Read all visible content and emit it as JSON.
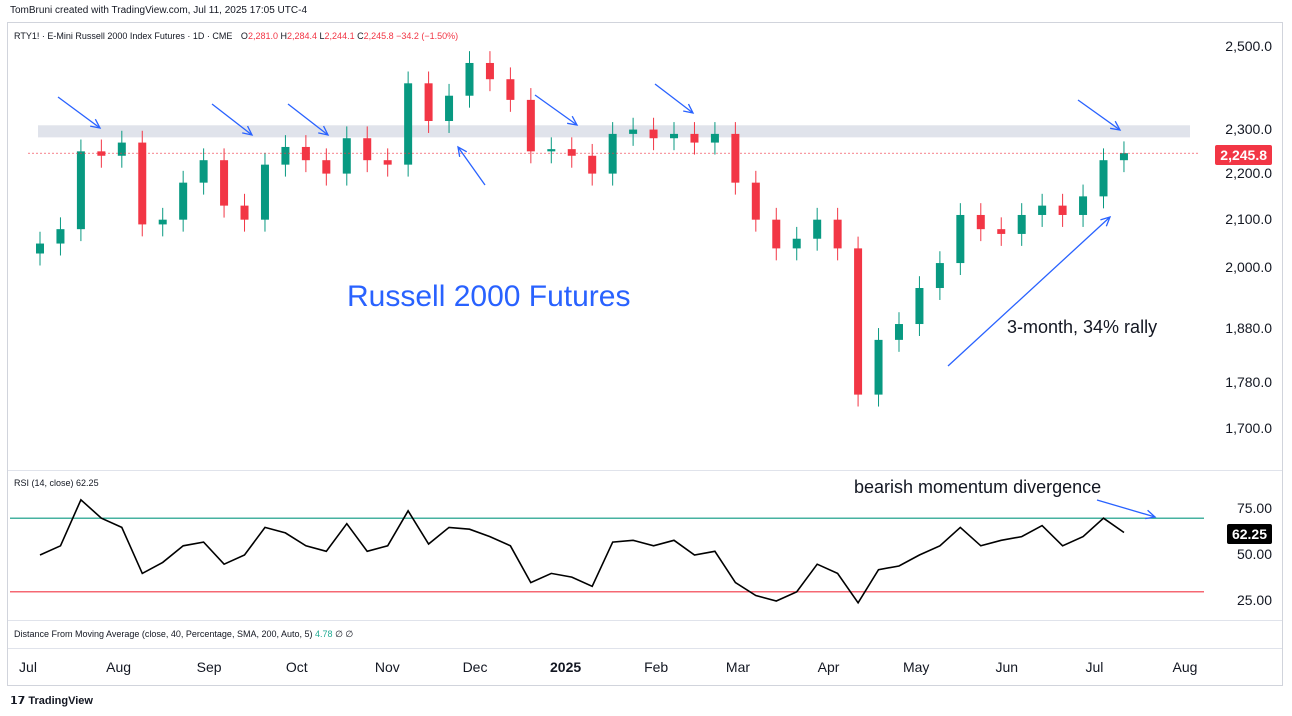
{
  "credit": "TomBruni created with TradingView.com, Jul 11, 2025 17:05 UTC-4",
  "header": {
    "symbol_desc": "RTY1! · E-Mini Russell 2000 Index Futures · 1D · CME",
    "o_label": "O",
    "o_value": "2,281.0",
    "h_label": "H",
    "h_value": "2,284.4",
    "l_label": "L",
    "l_value": "2,244.1",
    "c_label": "C",
    "c_value": "2,245.8",
    "change": "−34.2 (−1.50%)"
  },
  "rsi_header": {
    "label": "RSI (14, close)",
    "value": "62.25"
  },
  "dma_header": {
    "label": "Distance From Moving Average (close, 40, Percentage, SMA, 200, Auto, 5)",
    "value": "4.78",
    "na1": "∅",
    "na2": "∅"
  },
  "price_badge": "2,245.8",
  "rsi_badge": "62.25",
  "annotations": {
    "title": "Russell 2000 Futures",
    "rally": "3-month, 34% rally",
    "divergence": "bearish momentum divergence"
  },
  "logo_text": "TradingView",
  "colors": {
    "up": "#089981",
    "down": "#f23645",
    "arrow": "#2962ff",
    "resistance": "#e0e3eb",
    "rsi_line": "#000000",
    "rsi_upper": "#089981",
    "rsi_lower": "#f23645"
  },
  "chart_data": [
    {
      "type": "candlestick",
      "title": "RTY1! · E-Mini Russell 2000 Index Futures · 1D · CME",
      "y_ticks": [
        "2,500.0",
        "2,300.0",
        "2,200.0",
        "2,100.0",
        "2,000.0",
        "1,880.0",
        "1,780.0",
        "1,700.0"
      ],
      "y_scale": "log",
      "x_ticks": [
        "Jul",
        "Aug",
        "Sep",
        "Oct",
        "Nov",
        "Dec",
        "2025",
        "Feb",
        "Mar",
        "Apr",
        "May",
        "Jun",
        "Jul",
        "Aug"
      ],
      "resistance_zone": [
        2282,
        2310
      ],
      "last_price": 2245.8,
      "weekly_closes": [
        {
          "date": "2024-07-01",
          "close": 2050
        },
        {
          "date": "2024-07-08",
          "close": 2080
        },
        {
          "date": "2024-07-15",
          "close": 2250
        },
        {
          "date": "2024-07-22",
          "close": 2240
        },
        {
          "date": "2024-07-29",
          "close": 2270
        },
        {
          "date": "2024-08-05",
          "close": 2090
        },
        {
          "date": "2024-08-12",
          "close": 2100
        },
        {
          "date": "2024-08-19",
          "close": 2180
        },
        {
          "date": "2024-08-26",
          "close": 2230
        },
        {
          "date": "2024-09-02",
          "close": 2130
        },
        {
          "date": "2024-09-09",
          "close": 2100
        },
        {
          "date": "2024-09-16",
          "close": 2220
        },
        {
          "date": "2024-09-23",
          "close": 2260
        },
        {
          "date": "2024-09-30",
          "close": 2230
        },
        {
          "date": "2024-10-07",
          "close": 2200
        },
        {
          "date": "2024-10-14",
          "close": 2280
        },
        {
          "date": "2024-10-21",
          "close": 2230
        },
        {
          "date": "2024-10-28",
          "close": 2220
        },
        {
          "date": "2024-11-04",
          "close": 2410
        },
        {
          "date": "2024-11-11",
          "close": 2320
        },
        {
          "date": "2024-11-18",
          "close": 2380
        },
        {
          "date": "2024-11-25",
          "close": 2460
        },
        {
          "date": "2024-12-02",
          "close": 2420
        },
        {
          "date": "2024-12-09",
          "close": 2370
        },
        {
          "date": "2024-12-16",
          "close": 2250
        },
        {
          "date": "2024-12-23",
          "close": 2255
        },
        {
          "date": "2024-12-30",
          "close": 2240
        },
        {
          "date": "2025-01-06",
          "close": 2200
        },
        {
          "date": "2025-01-13",
          "close": 2290
        },
        {
          "date": "2025-01-20",
          "close": 2300
        },
        {
          "date": "2025-01-27",
          "close": 2280
        },
        {
          "date": "2025-02-03",
          "close": 2290
        },
        {
          "date": "2025-02-10",
          "close": 2270
        },
        {
          "date": "2025-02-17",
          "close": 2290
        },
        {
          "date": "2025-02-24",
          "close": 2180
        },
        {
          "date": "2025-03-03",
          "close": 2100
        },
        {
          "date": "2025-03-10",
          "close": 2040
        },
        {
          "date": "2025-03-17",
          "close": 2060
        },
        {
          "date": "2025-03-24",
          "close": 2100
        },
        {
          "date": "2025-03-31",
          "close": 2040
        },
        {
          "date": "2025-04-07",
          "close": 1760
        },
        {
          "date": "2025-04-14",
          "close": 1860
        },
        {
          "date": "2025-04-21",
          "close": 1890
        },
        {
          "date": "2025-04-28",
          "close": 1960
        },
        {
          "date": "2025-05-05",
          "close": 2010
        },
        {
          "date": "2025-05-12",
          "close": 2110
        },
        {
          "date": "2025-05-19",
          "close": 2080
        },
        {
          "date": "2025-05-26",
          "close": 2070
        },
        {
          "date": "2025-06-02",
          "close": 2110
        },
        {
          "date": "2025-06-09",
          "close": 2130
        },
        {
          "date": "2025-06-16",
          "close": 2110
        },
        {
          "date": "2025-06-23",
          "close": 2150
        },
        {
          "date": "2025-06-30",
          "close": 2230
        },
        {
          "date": "2025-07-07",
          "close": 2245.8
        }
      ]
    },
    {
      "type": "line",
      "title": "RSI (14, close)",
      "y_ticks": [
        "75.00",
        "50.00",
        "25.00"
      ],
      "levels": [
        70,
        30
      ],
      "last_value": 62.25,
      "series": [
        {
          "date": "2024-07-01",
          "value": 50
        },
        {
          "date": "2024-07-08",
          "value": 55
        },
        {
          "date": "2024-07-15",
          "value": 80
        },
        {
          "date": "2024-07-22",
          "value": 70
        },
        {
          "date": "2024-07-29",
          "value": 65
        },
        {
          "date": "2024-08-05",
          "value": 40
        },
        {
          "date": "2024-08-12",
          "value": 46
        },
        {
          "date": "2024-08-19",
          "value": 55
        },
        {
          "date": "2024-08-26",
          "value": 57
        },
        {
          "date": "2024-09-02",
          "value": 45
        },
        {
          "date": "2024-09-09",
          "value": 50
        },
        {
          "date": "2024-09-16",
          "value": 65
        },
        {
          "date": "2024-09-23",
          "value": 62
        },
        {
          "date": "2024-09-30",
          "value": 55
        },
        {
          "date": "2024-10-07",
          "value": 52
        },
        {
          "date": "2024-10-14",
          "value": 67
        },
        {
          "date": "2024-10-21",
          "value": 52
        },
        {
          "date": "2024-10-28",
          "value": 55
        },
        {
          "date": "2024-11-04",
          "value": 74
        },
        {
          "date": "2024-11-11",
          "value": 56
        },
        {
          "date": "2024-11-18",
          "value": 65
        },
        {
          "date": "2024-11-25",
          "value": 64
        },
        {
          "date": "2024-12-02",
          "value": 60
        },
        {
          "date": "2024-12-09",
          "value": 55
        },
        {
          "date": "2024-12-16",
          "value": 35
        },
        {
          "date": "2024-12-23",
          "value": 40
        },
        {
          "date": "2024-12-30",
          "value": 38
        },
        {
          "date": "2025-01-06",
          "value": 33
        },
        {
          "date": "2025-01-13",
          "value": 57
        },
        {
          "date": "2025-01-20",
          "value": 58
        },
        {
          "date": "2025-01-27",
          "value": 55
        },
        {
          "date": "2025-02-03",
          "value": 58
        },
        {
          "date": "2025-02-10",
          "value": 50
        },
        {
          "date": "2025-02-17",
          "value": 52
        },
        {
          "date": "2025-02-24",
          "value": 35
        },
        {
          "date": "2025-03-03",
          "value": 28
        },
        {
          "date": "2025-03-10",
          "value": 25
        },
        {
          "date": "2025-03-17",
          "value": 30
        },
        {
          "date": "2025-03-24",
          "value": 45
        },
        {
          "date": "2025-03-31",
          "value": 40
        },
        {
          "date": "2025-04-07",
          "value": 24
        },
        {
          "date": "2025-04-14",
          "value": 42
        },
        {
          "date": "2025-04-21",
          "value": 44
        },
        {
          "date": "2025-04-28",
          "value": 50
        },
        {
          "date": "2025-05-05",
          "value": 55
        },
        {
          "date": "2025-05-12",
          "value": 65
        },
        {
          "date": "2025-05-19",
          "value": 55
        },
        {
          "date": "2025-05-26",
          "value": 58
        },
        {
          "date": "2025-06-02",
          "value": 60
        },
        {
          "date": "2025-06-09",
          "value": 66
        },
        {
          "date": "2025-06-16",
          "value": 55
        },
        {
          "date": "2025-06-23",
          "value": 60
        },
        {
          "date": "2025-06-30",
          "value": 70
        },
        {
          "date": "2025-07-07",
          "value": 62.25
        }
      ]
    }
  ]
}
